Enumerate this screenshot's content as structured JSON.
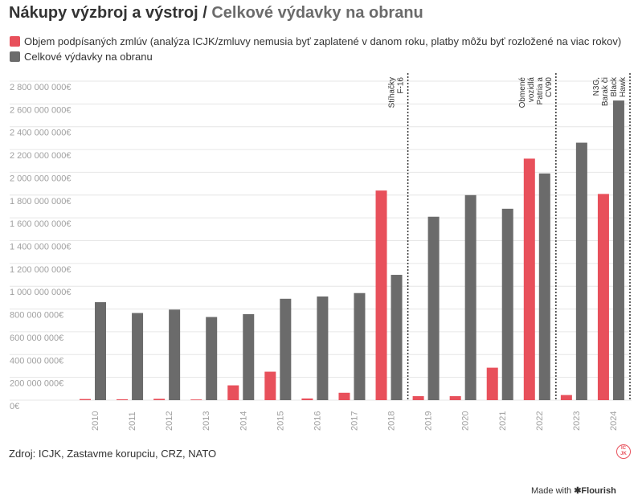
{
  "header": {
    "title_part1": "Nákupy výzbroj a výstroj /",
    "title_part2": " Celkové výdavky na obranu"
  },
  "legend": {
    "items": [
      {
        "label": "Objem podpísaných zmlúv (analýza ICJK/zmluvy nemusia byť zaplatené v danom roku, platby môžu byť rozložené na viac rokov)",
        "color": "#e8505b"
      },
      {
        "label": "Celkové výdavky na obranu",
        "color": "#6b6b6b"
      }
    ]
  },
  "chart_data": {
    "type": "bar",
    "categories": [
      "2010",
      "2011",
      "2012",
      "2013",
      "2014",
      "2015",
      "2016",
      "2017",
      "2018",
      "2019",
      "2020",
      "2021",
      "2022",
      "2023",
      "2024"
    ],
    "series": [
      {
        "name": "Objem podpísaných zmlúv (analýza ICJK/zmluvy nemusia byť zaplatené v danom roku, platby môžu byť rozložené na viac rokov)",
        "color": "#e8505b",
        "values": [
          10000000,
          8000000,
          12000000,
          6000000,
          130000000,
          250000000,
          15000000,
          65000000,
          1840000000,
          35000000,
          35000000,
          285000000,
          2120000000,
          45000000,
          1810000000
        ]
      },
      {
        "name": "Celkové výdavky na obranu",
        "color": "#6b6b6b",
        "values": [
          860000000,
          765000000,
          795000000,
          730000000,
          755000000,
          890000000,
          910000000,
          940000000,
          1100000000,
          1610000000,
          1800000000,
          1680000000,
          1990000000,
          2260000000,
          2630000000
        ]
      }
    ],
    "yticks": [
      "0€",
      "200 000 000€",
      "400 000 000€",
      "600 000 000€",
      "800 000 000€",
      "1 000 000 000€",
      "1 200 000 000€",
      "1 400 000 000€",
      "1 600 000 000€",
      "1 800 000 000€",
      "2 000 000 000€",
      "2 200 000 000€",
      "2 400 000 000€",
      "2 600 000 000€",
      "2 800 000 000€"
    ],
    "ylim": [
      0,
      2800000000
    ],
    "grid": true,
    "annotations": [
      {
        "year": "2018",
        "text": [
          "Stíhačky",
          "F-16"
        ]
      },
      {
        "year": "2022",
        "text": [
          "Obmené",
          "vozidlá",
          "Patria a",
          "CV90"
        ]
      },
      {
        "year": "2024",
        "text": [
          "N3G,",
          "Barak či",
          "Black",
          "Hawk"
        ]
      }
    ]
  },
  "footer": {
    "source": "Zdroj: ICJK, Zastavme korupciu, CRZ, NATO",
    "badge_text": "ICJK",
    "made_with": "Made with",
    "brand": "✱Flourish"
  }
}
